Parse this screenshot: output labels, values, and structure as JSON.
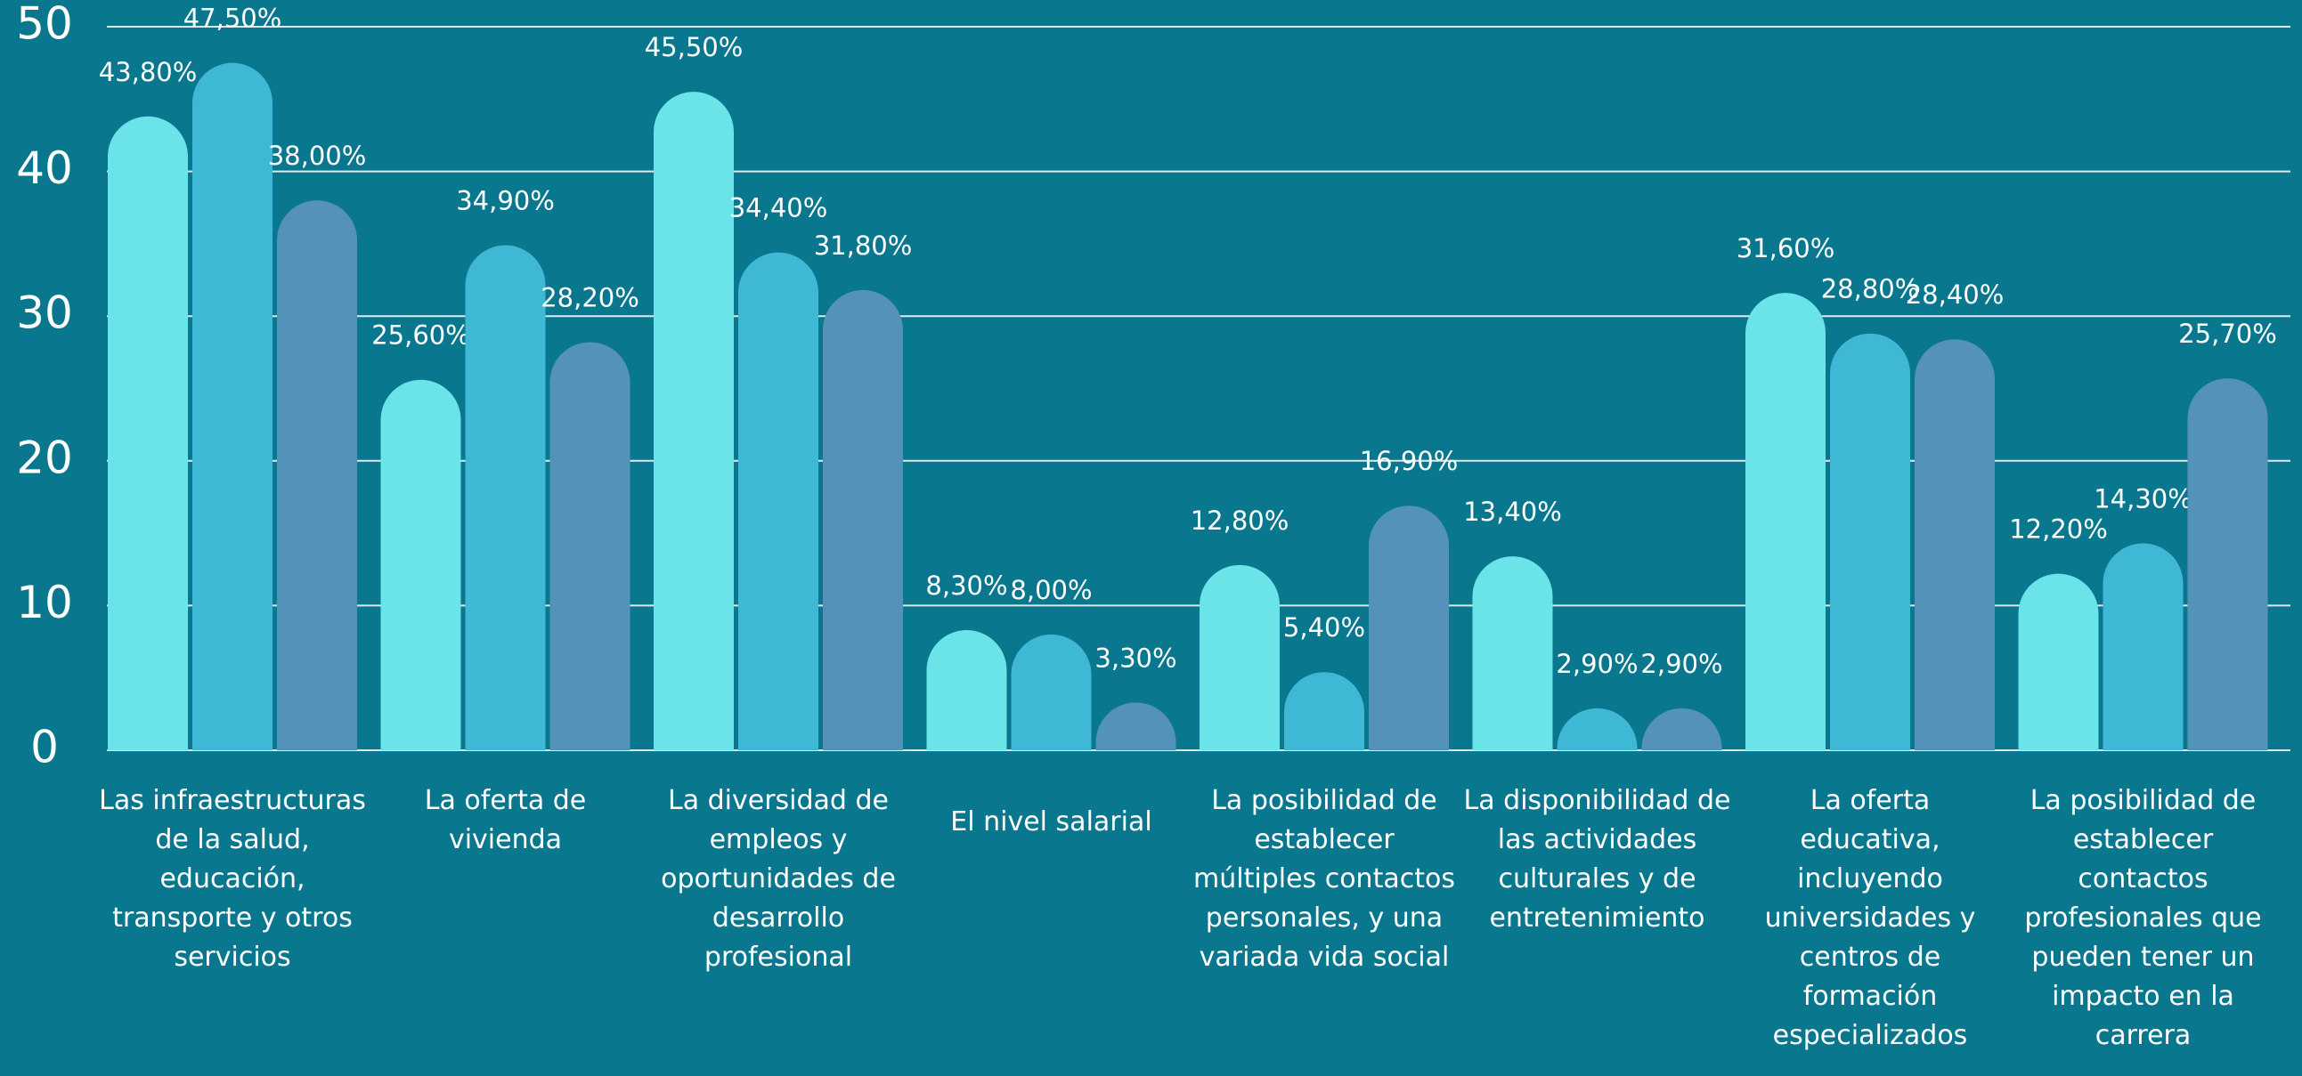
{
  "chart_data": {
    "type": "bar",
    "categories": [
      "Las infraestructuras de la salud, educación, transporte y otros servicios",
      "La oferta de vivienda",
      "La diversidad de empleos y oportunidades de desarrollo profesional",
      "El nivel salarial",
      "La posibilidad de establecer múltiples contactos personales, y una variada vida social",
      "La disponibilidad de las actividades culturales y de entretenimiento",
      "La oferta educativa, incluyendo universidades y centros de formación especializados",
      "La posibilidad de establecer contactos profesionales que pueden tener un impacto en la carrera"
    ],
    "series": [
      {
        "color": "#6ae4e8",
        "values": [
          43.8,
          25.6,
          45.5,
          8.3,
          12.8,
          13.4,
          31.6,
          12.2
        ],
        "value_labels": [
          "43,80%",
          "25,60%",
          "45,50%",
          "8,30%",
          "12,80%",
          "13,40%",
          "31,60%",
          "12,20%"
        ]
      },
      {
        "color": "#3fb8d6",
        "values": [
          47.5,
          34.9,
          34.4,
          8.0,
          5.4,
          2.9,
          28.8,
          14.3
        ],
        "value_labels": [
          "47,50%",
          "34,90%",
          "34,40%",
          "8,00%",
          "5,40%",
          "2,90%",
          "28,80%",
          "14,30%"
        ]
      },
      {
        "color": "#5592ba",
        "values": [
          38.0,
          28.2,
          31.8,
          3.3,
          16.9,
          2.9,
          28.4,
          25.7
        ],
        "value_labels": [
          "38,00%",
          "28,20%",
          "31,80%",
          "3,30%",
          "16,90%",
          "2,90%",
          "28,40%",
          "25,70%"
        ]
      }
    ],
    "ylim": [
      0,
      50
    ],
    "yticks": [
      0,
      10,
      20,
      30,
      40,
      50
    ],
    "grid": true
  }
}
